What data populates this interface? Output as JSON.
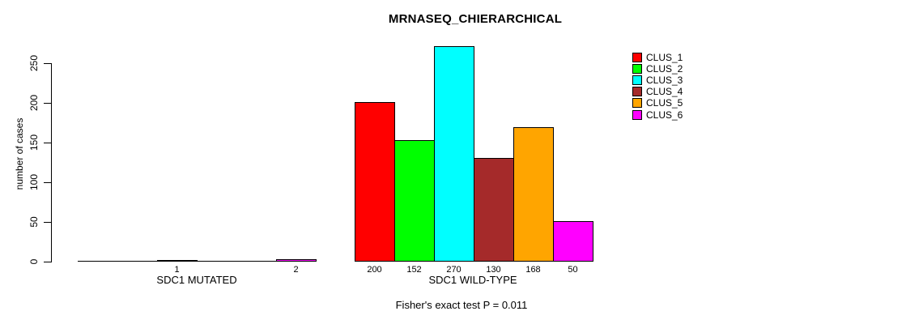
{
  "title": "MRNASEQ_CHIERARCHICAL",
  "y_axis": {
    "label": "number of cases",
    "ticks": [
      "0",
      "50",
      "100",
      "150",
      "200",
      "250"
    ]
  },
  "groups": {
    "mutated": {
      "label": "SDC1 MUTATED"
    },
    "wild_type": {
      "label": "SDC1 WILD-TYPE"
    }
  },
  "footer": "Fisher's exact test P = 0.011",
  "legend": {
    "items": [
      {
        "label": "CLUS_1",
        "color": "#FF0000"
      },
      {
        "label": "CLUS_2",
        "color": "#00FF00"
      },
      {
        "label": "CLUS_3",
        "color": "#00FFFF"
      },
      {
        "label": "CLUS_4",
        "color": "#A52A2A"
      },
      {
        "label": "CLUS_5",
        "color": "#FFA500"
      },
      {
        "label": "CLUS_6",
        "color": "#FF00FF"
      }
    ]
  },
  "chart_data": {
    "type": "bar",
    "title": "MRNASEQ_CHIERARCHICAL",
    "xlabel": "",
    "ylabel": "number of cases",
    "ylim": [
      0,
      270
    ],
    "yticks": [
      0,
      50,
      100,
      150,
      200,
      250
    ],
    "grid": false,
    "legend_position": "right",
    "categories": [
      "SDC1 MUTATED",
      "SDC1 WILD-TYPE"
    ],
    "series": [
      {
        "name": "CLUS_1",
        "color": "#FF0000",
        "values": [
          0,
          200
        ]
      },
      {
        "name": "CLUS_2",
        "color": "#00FF00",
        "values": [
          0,
          152
        ]
      },
      {
        "name": "CLUS_3",
        "color": "#00FFFF",
        "values": [
          1,
          270
        ]
      },
      {
        "name": "CLUS_4",
        "color": "#A52A2A",
        "values": [
          0,
          130
        ]
      },
      {
        "name": "CLUS_5",
        "color": "#FFA500",
        "values": [
          0,
          168
        ]
      },
      {
        "name": "CLUS_6",
        "color": "#FF00FF",
        "values": [
          2,
          50
        ]
      }
    ],
    "bar_value_labels": {
      "SDC1 MUTATED": [
        null,
        null,
        1,
        null,
        null,
        2
      ],
      "SDC1 WILD-TYPE": [
        200,
        152,
        270,
        130,
        168,
        50
      ]
    },
    "annotation": "Fisher's exact test P = 0.011"
  }
}
